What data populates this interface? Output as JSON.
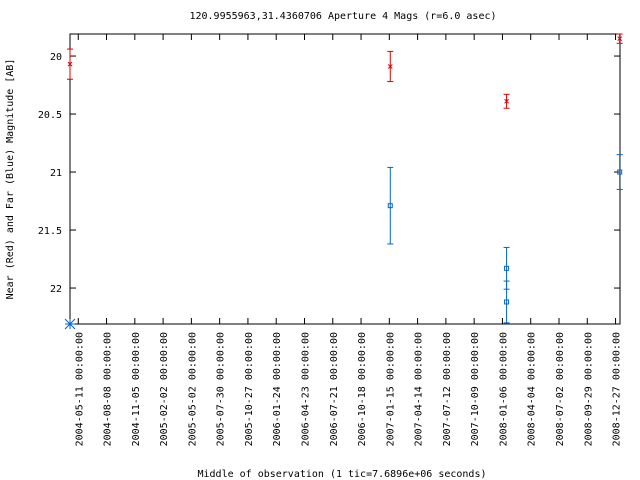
{
  "chart_data": {
    "type": "scatter",
    "title": "120.9955963,31.4360706   Aperture 4 Mags (r=6.0 asec)",
    "xlabel": "Middle of observation (1 tic=7.6896e+06 seconds)",
    "ylabel": "Near (Red) and Far (Blue) Magnitude [AB]",
    "y_reversed": true,
    "ylim": [
      22.31,
      19.81
    ],
    "y_ticks": [
      20,
      20.5,
      21,
      21.5,
      22
    ],
    "y_tick_labels": [
      "20",
      "20.5",
      "21",
      "21.5",
      "22"
    ],
    "xlim": [
      "2004-04-15",
      "2009-01-10"
    ],
    "x_ticks": [
      "2004-05-11",
      "2004-08-08",
      "2004-11-05",
      "2005-02-02",
      "2005-05-02",
      "2005-07-30",
      "2005-10-27",
      "2006-01-24",
      "2006-04-23",
      "2006-07-21",
      "2006-10-18",
      "2007-01-15",
      "2007-04-14",
      "2007-07-12",
      "2007-10-09",
      "2008-01-06",
      "2008-04-04",
      "2008-07-02",
      "2008-09-29",
      "2008-12-27"
    ],
    "x_tick_labels": [
      "2004-05-11  00:00:00",
      "2004-08-08  00:00:00",
      "2004-11-05  00:00:00",
      "2005-02-02  00:00:00",
      "2005-05-02  00:00:00",
      "2005-07-30  00:00:00",
      "2005-10-27  00:00:00",
      "2006-01-24  00:00:00",
      "2006-04-23  00:00:00",
      "2006-07-21  00:00:00",
      "2006-10-18  00:00:00",
      "2007-01-15  00:00:00",
      "2007-04-14  00:00:00",
      "2007-07-12  00:00:00",
      "2007-10-09  00:00:00",
      "2008-01-06  00:00:00",
      "2008-04-04  00:00:00",
      "2008-07-02  00:00:00",
      "2008-09-29  00:00:00",
      "2008-12-27  00:00:00"
    ],
    "series": [
      {
        "color": "#dd0000",
        "marker": "x",
        "points": [
          {
            "x": "2004-04-15",
            "y": 20.07,
            "err": 0.13
          },
          {
            "x": "2007-01-18",
            "y": 20.09,
            "err": 0.13
          },
          {
            "x": "2008-01-19",
            "y": 20.39,
            "err": 0.06
          },
          {
            "x": "2009-01-09",
            "y": 19.85,
            "err": 0.04
          }
        ]
      },
      {
        "color": "#0066cc",
        "marker": "square",
        "points": [
          {
            "x": "2007-01-18",
            "y": 21.29,
            "err": 0.33
          },
          {
            "x": "2008-01-19",
            "y": 21.83,
            "err": 0.18
          },
          {
            "x": "2008-01-19",
            "y": 22.12,
            "err": 0.18
          },
          {
            "x": "2009-01-09",
            "y": 21.0,
            "err": 0.15
          }
        ]
      },
      {
        "color": "#0066cc",
        "marker": "star",
        "points": [
          {
            "x": "2004-04-15",
            "y": 22.31
          }
        ]
      }
    ],
    "grid": false,
    "legend": "none"
  }
}
